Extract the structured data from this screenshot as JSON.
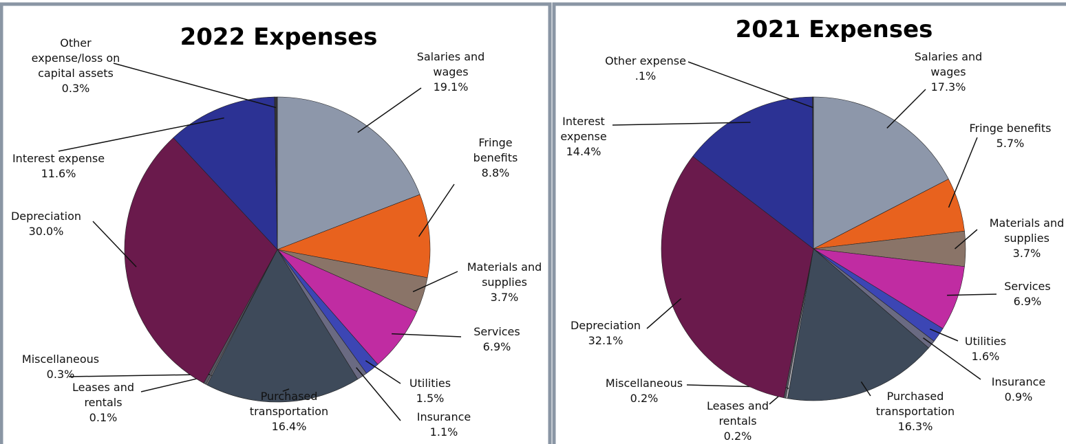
{
  "chart_data": [
    {
      "type": "pie",
      "title": "2022 Expenses",
      "categories": [
        "Salaries and wages",
        "Fringe benefits",
        "Materials and supplies",
        "Services",
        "Utilities",
        "Insurance",
        "Purchased transportation",
        "Leases and rentals",
        "Miscellaneous",
        "Depreciation",
        "Interest expense",
        "Other expense/loss on capital assets"
      ],
      "values": [
        19.1,
        8.8,
        3.7,
        6.9,
        1.5,
        1.1,
        16.4,
        0.1,
        0.3,
        30.0,
        11.6,
        0.3
      ],
      "value_labels": [
        "19.1%",
        "8.8%",
        "3.7%",
        "6.9%",
        "1.5%",
        "1.1%",
        "16.4%",
        "0.1%",
        "0.3%",
        "30.0%",
        "11.6%",
        "0.3%"
      ],
      "colors": [
        "#8d97aa",
        "#e8621e",
        "#8a7468",
        "#c02ca2",
        "#3c46b4",
        "#6a6a82",
        "#3e4a5a",
        "#b4b4bc",
        "#555560",
        "#6a1a4c",
        "#2c3294",
        "#333338"
      ]
    },
    {
      "type": "pie",
      "title": "2021 Expenses",
      "categories": [
        "Salaries and wages",
        "Fringe benefits",
        "Materials and supplies",
        "Services",
        "Utilities",
        "Insurance",
        "Purchased transportation",
        "Leases and rentals",
        "Miscellaneous",
        "Depreciation",
        "Interest expense",
        "Other expense"
      ],
      "values": [
        17.3,
        5.7,
        3.7,
        6.9,
        1.6,
        0.9,
        16.3,
        0.2,
        0.2,
        32.1,
        14.4,
        0.1
      ],
      "value_labels": [
        "17.3%",
        "5.7%",
        "3.7%",
        "6.9%",
        "1.6%",
        "0.9%",
        "16.3%",
        "0.2%",
        "0.2%",
        "32.1%",
        "14.4%",
        ".1%"
      ],
      "colors": [
        "#8d97aa",
        "#e8621e",
        "#8a7468",
        "#c02ca2",
        "#3c46b4",
        "#6a6a82",
        "#3e4a5a",
        "#b4b4bc",
        "#555560",
        "#6a1a4c",
        "#2c3294",
        "#333338"
      ]
    }
  ]
}
